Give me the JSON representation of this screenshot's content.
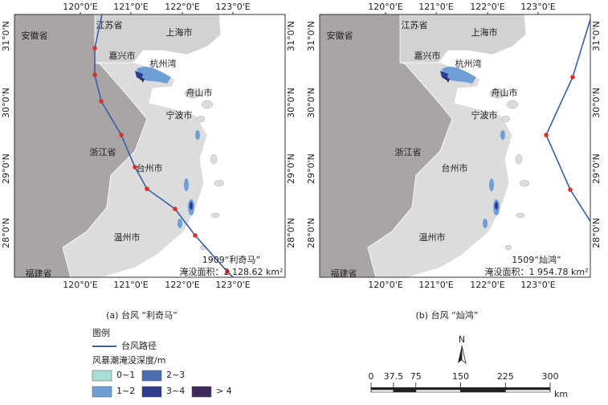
{
  "panels": [
    {
      "typhoon": "1909“利奇马”",
      "area": "淹没面积：2 128.62 km²",
      "caption": "(a) 台风 “利奇马”"
    },
    {
      "typhoon": "1509“灿鸿”",
      "area": "淹没面积：1 954.78 km²",
      "caption": "(b) 台风 “灿鸿”"
    }
  ],
  "lon_labels": [
    "120°0'E",
    "121°0'E",
    "122°0'E",
    "123°0'E"
  ],
  "lat_labels": [
    "31°0'N",
    "30°0'N",
    "29°0'N",
    "28°0'N"
  ],
  "places": {
    "anhui": "安徽省",
    "jiangsu": "江苏省",
    "shanghai": "上海市",
    "jiaxing": "嘉兴市",
    "hangzhouwan": "杭州湾",
    "zhoushan": "舟山市",
    "ningbo": "宁波市",
    "zhejiang": "浙江省",
    "taizhou": "台州市",
    "wenzhou": "温州市",
    "fujian": "福建省"
  },
  "legend": {
    "title": "图例",
    "track": "台风路径",
    "depth_title": "风暴潮淹没深度/m",
    "classes": [
      {
        "label": "0~1",
        "color": "#a8ddd6"
      },
      {
        "label": "1~2",
        "color": "#6d9fd6"
      },
      {
        "label": "2~3",
        "color": "#4a6fb0"
      },
      {
        "label": "3~4",
        "color": "#2c3d8f"
      },
      {
        "label": "> 4",
        "color": "#3b2a5a"
      }
    ]
  },
  "north": "N",
  "scale_bar": {
    "ticks": [
      0,
      37.5,
      75,
      150,
      225,
      300
    ],
    "unit": "km"
  }
}
